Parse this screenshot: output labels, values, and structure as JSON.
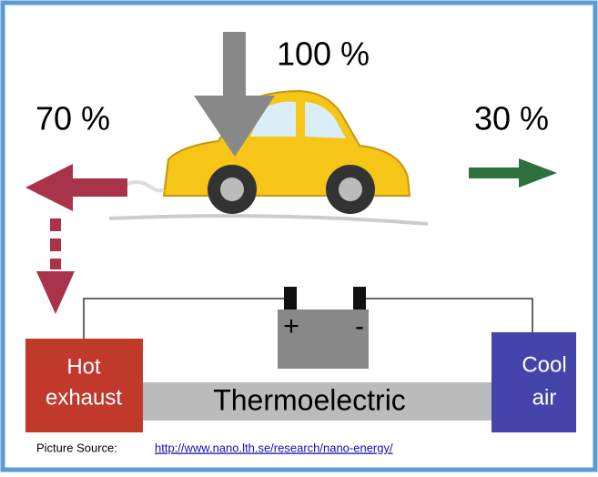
{
  "energy_in": "100 %",
  "exhaust_loss": "70 %",
  "useful": "30 %",
  "hot_box": [
    "Hot",
    "exhaust"
  ],
  "cool_box": [
    "Cool",
    "air"
  ],
  "bar_label": "Thermoelectric",
  "battery": {
    "plus": "+",
    "minus": "-"
  },
  "source": {
    "label": "Picture Source:",
    "url": "http://www.nano.lth.se/research/nano-energy/"
  }
}
